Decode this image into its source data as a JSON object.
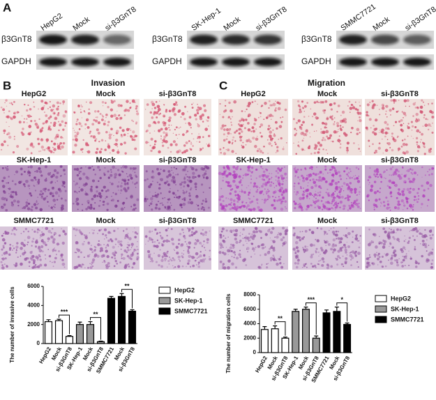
{
  "figure": {
    "panel_labels": [
      "A",
      "B",
      "C"
    ],
    "blots": [
      {
        "lanes": [
          "HepG2",
          "Mock",
          "si-β3GnT8"
        ],
        "proteins": [
          "β3GnT8",
          "GAPDH"
        ]
      },
      {
        "lanes": [
          "SK-Hep-1",
          "Mock",
          "si-β3GnT8"
        ],
        "proteins": [
          "β3GnT8",
          "GAPDH"
        ]
      },
      {
        "lanes": [
          "SMMC7721",
          "Mock",
          "si-β3GnT8"
        ],
        "proteins": [
          "β3GnT8",
          "GAPDH"
        ]
      }
    ],
    "assays": [
      {
        "title": "Invasion",
        "rows": [
          [
            "HepG2",
            "Mock",
            "si-β3GnT8"
          ],
          [
            "SK-Hep-1",
            "Mock",
            "si-β3GnT8"
          ],
          [
            "SMMC7721",
            "Mock",
            "si-β3GnT8"
          ]
        ]
      },
      {
        "title": "Migration",
        "rows": [
          [
            "HepG2",
            "Mock",
            "si-β3GnT8"
          ],
          [
            "SK-Hep-1",
            "Mock",
            "si-β3GnT8"
          ],
          [
            "SMMC7721",
            "Mock",
            "si-β3GnT8"
          ]
        ]
      }
    ]
  },
  "chart_data": [
    {
      "type": "bar",
      "ylabel": "The number of invasive cells",
      "categories": [
        "HepG2",
        "Mock",
        "si-β3GnT8",
        "SK-Hep-1",
        "Mock",
        "si-β3GnT8",
        "SMMC7721",
        "Mock",
        "si-β3GnT8"
      ],
      "series": [
        {
          "name": "HepG2",
          "color": "#ffffff",
          "values": [
            2300,
            2400,
            750,
            null,
            null,
            null,
            null,
            null,
            null
          ],
          "errors": [
            200,
            150,
            80,
            null,
            null,
            null,
            null,
            null,
            null
          ]
        },
        {
          "name": "SK-Hep-1",
          "color": "#999999",
          "values": [
            null,
            null,
            null,
            2000,
            2000,
            200,
            null,
            null,
            null
          ],
          "errors": [
            null,
            null,
            null,
            250,
            300,
            60,
            null,
            null,
            null
          ]
        },
        {
          "name": "SMMC7721",
          "color": "#000000",
          "values": [
            null,
            null,
            null,
            null,
            null,
            null,
            4750,
            4950,
            3400
          ],
          "errors": [
            null,
            null,
            null,
            null,
            null,
            null,
            200,
            300,
            150
          ]
        }
      ],
      "annotations": [
        {
          "text": "***",
          "categories": [
            1,
            2
          ]
        },
        {
          "text": "**",
          "categories": [
            4,
            5
          ]
        },
        {
          "text": "**",
          "categories": [
            7,
            8
          ]
        }
      ],
      "ylim": [
        0,
        6000
      ],
      "yticks": [
        0,
        2000,
        4000,
        6000
      ]
    },
    {
      "type": "bar",
      "ylabel": "The number of migration cells",
      "categories": [
        "HepG2",
        "Mock",
        "si-β3GnT8",
        "SK-Hep-1",
        "Mock",
        "si-β3GnT8",
        "SMMC7721",
        "Mock",
        "si-β3GnT8"
      ],
      "series": [
        {
          "name": "HepG2",
          "color": "#ffffff",
          "values": [
            3200,
            3300,
            2000,
            null,
            null,
            null,
            null,
            null,
            null
          ],
          "errors": [
            400,
            400,
            150,
            null,
            null,
            null,
            null,
            null,
            null
          ]
        },
        {
          "name": "SK-Hep-1",
          "color": "#999999",
          "values": [
            null,
            null,
            null,
            5700,
            6000,
            2000,
            null,
            null,
            null
          ],
          "errors": [
            null,
            null,
            null,
            300,
            300,
            300,
            null,
            null,
            null
          ]
        },
        {
          "name": "SMMC7721",
          "color": "#000000",
          "values": [
            null,
            null,
            null,
            null,
            null,
            null,
            5500,
            5700,
            3900
          ],
          "errors": [
            null,
            null,
            null,
            null,
            null,
            null,
            400,
            600,
            200
          ]
        }
      ],
      "annotations": [
        {
          "text": "**",
          "categories": [
            1,
            2
          ]
        },
        {
          "text": "***",
          "categories": [
            4,
            5
          ]
        },
        {
          "text": "*",
          "categories": [
            7,
            8
          ]
        }
      ],
      "ylim": [
        0,
        8000
      ],
      "yticks": [
        0,
        2000,
        4000,
        6000,
        8000
      ]
    }
  ]
}
